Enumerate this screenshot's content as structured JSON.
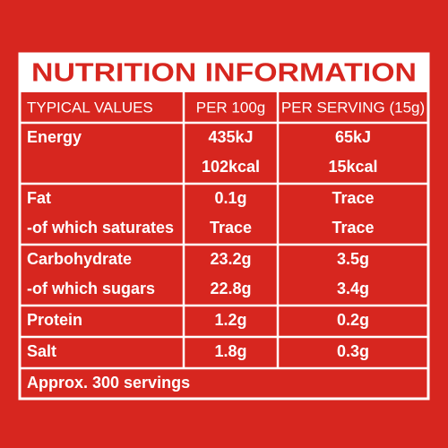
{
  "header": {
    "title": "NUTRITION INFORMATION"
  },
  "table": {
    "columns": [
      "TYPICAL VALUES",
      "PER 100g",
      "PER SERVING (15g)"
    ],
    "rows": [
      [
        [
          "Energy"
        ],
        [
          "435kJ",
          "102kcal"
        ],
        [
          "65kJ",
          "15kcal"
        ]
      ],
      [
        [
          "Fat",
          "-of which saturates"
        ],
        [
          "0.1g",
          "Trace"
        ],
        [
          "Trace",
          "Trace"
        ]
      ],
      [
        [
          "Carbohydrate",
          "-of which sugars"
        ],
        [
          "23.2g",
          "22.8g"
        ],
        [
          "3.5g",
          "3.4g"
        ]
      ],
      [
        [
          "Protein"
        ],
        [
          "1.2g"
        ],
        [
          "0.2g"
        ]
      ],
      [
        [
          "Salt"
        ],
        [
          "1.8g"
        ],
        [
          "0.3g"
        ]
      ]
    ],
    "footer": "Approx. 300 servings"
  }
}
